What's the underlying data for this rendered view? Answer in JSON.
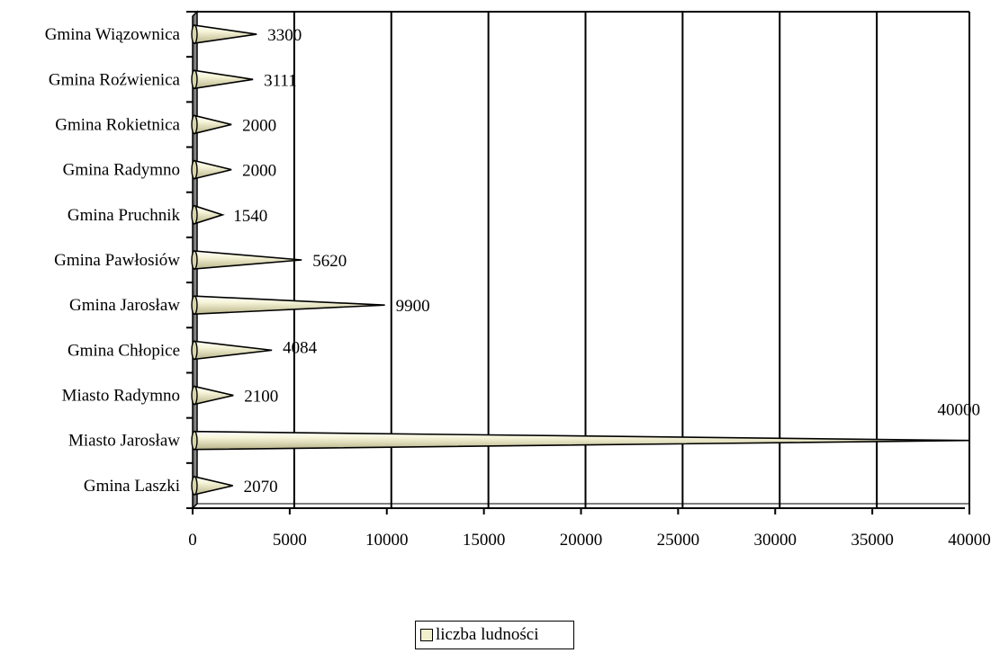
{
  "chart_data": {
    "type": "bar",
    "orientation": "horizontal",
    "bar_shape": "cone",
    "categories": [
      "Gmina Laszki",
      "Miasto Jarosław",
      "Miasto Radymno",
      "Gmina Chłopice",
      "Gmina Jarosław",
      "Gmina Pawłosiów",
      "Gmina Pruchnik",
      "Gmina Radymno",
      "Gmina Rokietnica",
      "Gmina Roźwienica",
      "Gmina Wiązownica"
    ],
    "series": [
      {
        "name": "liczba ludności",
        "values": [
          2070,
          40000,
          2100,
          4084,
          9900,
          5620,
          1540,
          2000,
          2000,
          3111,
          3300
        ],
        "value_labels": [
          "2070",
          "40000",
          "2100",
          "4084",
          "9900",
          "5620",
          "1540",
          "2000",
          "2000",
          "3111",
          "3300"
        ]
      }
    ],
    "xlim": [
      0,
      40000
    ],
    "x_ticks": [
      0,
      5000,
      10000,
      15000,
      20000,
      25000,
      30000,
      35000,
      40000
    ],
    "x_tick_labels": [
      "0",
      "5000",
      "10000",
      "15000",
      "20000",
      "25000",
      "30000",
      "35000",
      "40000"
    ],
    "grid": "vertical",
    "legend_position": "bottom",
    "colors": {
      "bar_fill": "#f2f0cc",
      "bar_stroke": "#000000",
      "grid": "#000000",
      "wall": "#808080"
    }
  },
  "legend": {
    "label": "liczba ludności"
  }
}
